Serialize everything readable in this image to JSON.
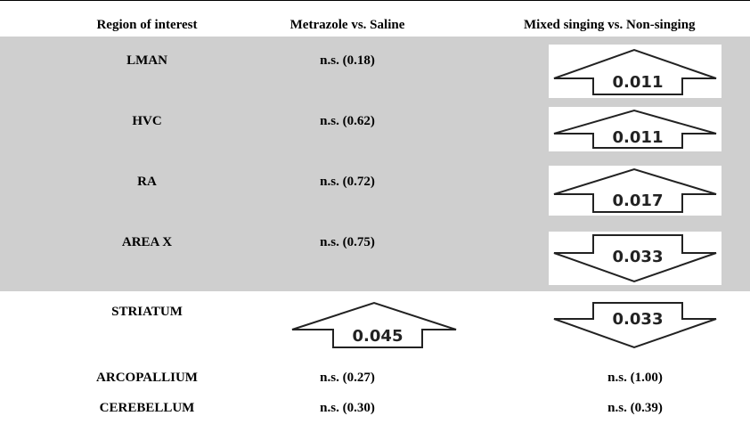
{
  "headers": {
    "region": "Region of interest",
    "metrazole": "Metrazole vs. Saline",
    "singing": "Mixed singing vs. Non-singing"
  },
  "rows": [
    {
      "region": "LMAN",
      "metrazole": "n.s. (0.18)",
      "singing": {
        "arrow": "up",
        "value": "0.011"
      }
    },
    {
      "region": "HVC",
      "metrazole": "n.s. (0.62)",
      "singing": {
        "arrow": "up",
        "value": "0.011"
      }
    },
    {
      "region": "RA",
      "metrazole": "n.s. (0.72)",
      "singing": {
        "arrow": "up",
        "value": "0.017"
      }
    },
    {
      "region": "AREA X",
      "metrazole": "n.s. (0.75)",
      "singing": {
        "arrow": "down",
        "value": "0.033"
      }
    },
    {
      "region": "STRIATUM",
      "metrazole": {
        "arrow": "up",
        "value": "0.045"
      },
      "singing": {
        "arrow": "down",
        "value": "0.033"
      }
    },
    {
      "region": "ARCOPALLIUM",
      "metrazole": "n.s. (0.27)",
      "singing": "n.s. (1.00)"
    },
    {
      "region": "CEREBELLUM",
      "metrazole": "n.s. (0.30)",
      "singing": "n.s. (0.39)"
    }
  ],
  "colors": {
    "shaded_band": "#cfcfcf",
    "arrow_stroke": "#222222"
  }
}
